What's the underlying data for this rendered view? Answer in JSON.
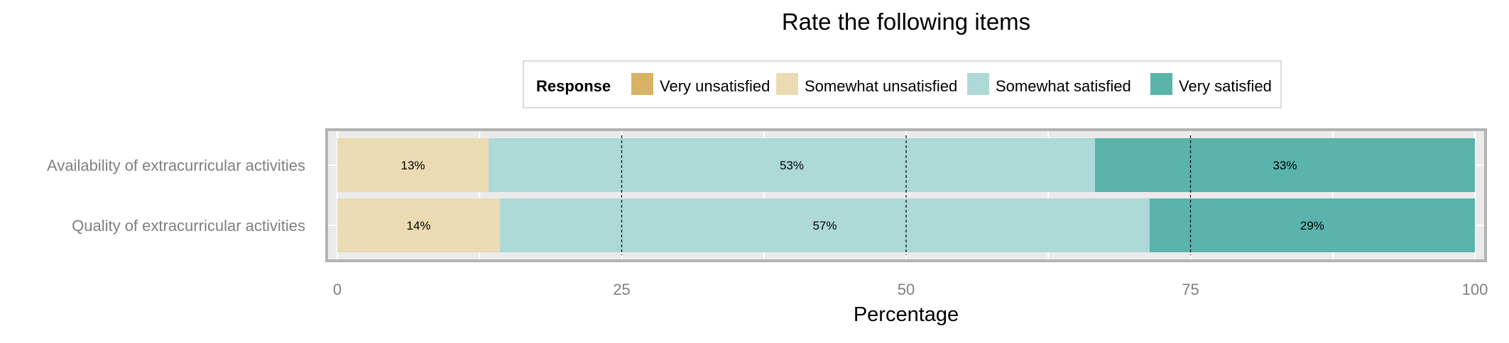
{
  "chart_data": {
    "type": "bar",
    "orientation": "horizontal",
    "stacked": true,
    "title": "Rate the following items",
    "xlabel": "Percentage",
    "ylabel": "",
    "xlim": [
      0,
      100
    ],
    "x_ticks": [
      "0",
      "25",
      "50",
      "75",
      "100"
    ],
    "categories": [
      "Availability of extracurricular activities",
      "Quality of extracurricular activities"
    ],
    "legend_title": "Response",
    "legend_position": "top",
    "grid": true,
    "series": [
      {
        "name": "Very unsatisfied",
        "color": "#D8B365",
        "values": [
          0,
          0
        ],
        "labels": [
          "",
          ""
        ]
      },
      {
        "name": "Somewhat unsatisfied",
        "color": "#EBDBB2",
        "values": [
          13.3,
          14.3
        ],
        "labels": [
          "13%",
          "14%"
        ]
      },
      {
        "name": "Somewhat satisfied",
        "color": "#ADD9D6",
        "values": [
          53.3,
          57.1
        ],
        "labels": [
          "53%",
          "57%"
        ]
      },
      {
        "name": "Very satisfied",
        "color": "#5AB4AC",
        "values": [
          33.4,
          28.6
        ],
        "labels": [
          "33%",
          "29%"
        ]
      }
    ]
  }
}
